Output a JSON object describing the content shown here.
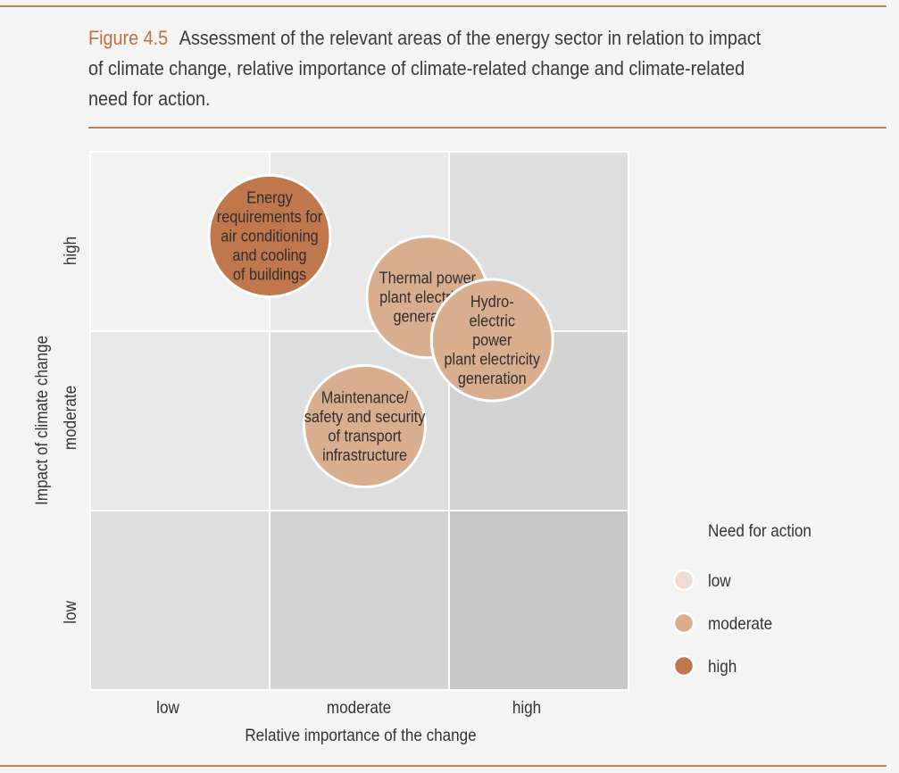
{
  "figure": {
    "label": "Figure 4.5",
    "title": "Assessment of the relevant areas of the energy sector in relation to impact of climate change, relative importance of climate-related change and climate-related need for action."
  },
  "chart_data": {
    "type": "scatter",
    "xlabel": "Relative importance of the change",
    "ylabel": "Impact of climate change",
    "x_categories": [
      "low",
      "moderate",
      "high"
    ],
    "y_categories": [
      "low",
      "moderate",
      "high"
    ],
    "grid": true,
    "cell_shading": [
      [
        "#f2f2f2",
        "#e8e8e8",
        "#dedede"
      ],
      [
        "#e8e8e8",
        "#dedede",
        "#d3d3d3"
      ],
      [
        "#dedede",
        "#d3d3d3",
        "#c8c8c8"
      ]
    ],
    "legend": {
      "title": "Need for action",
      "placement": "right",
      "entries": [
        {
          "label": "low",
          "color": "#f0ddd0"
        },
        {
          "label": "moderate",
          "color": "#d9ae8e"
        },
        {
          "label": "high",
          "color": "#c0774b"
        }
      ]
    },
    "points": [
      {
        "lines": [
          "Energy",
          "requirements for",
          "air conditioning",
          "and cooling",
          "of buildings"
        ],
        "x": 1.0,
        "y": 2.53,
        "need": "high"
      },
      {
        "lines": [
          "Thermal power",
          "plant electricity",
          "generation"
        ],
        "x": 1.88,
        "y": 2.19,
        "need": "moderate"
      },
      {
        "lines": [
          "Hydro-",
          "electric",
          "power",
          "plant electricity",
          "generation"
        ],
        "x": 2.24,
        "y": 1.95,
        "need": "moderate"
      },
      {
        "lines": [
          "Maintenance/",
          "safety and security",
          "of transport",
          "infrastructure"
        ],
        "x": 1.53,
        "y": 1.47,
        "need": "moderate"
      }
    ]
  }
}
